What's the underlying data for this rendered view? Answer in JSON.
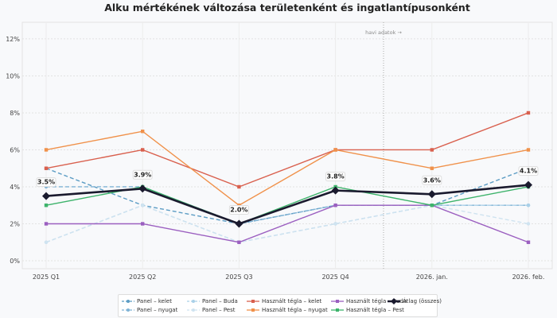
{
  "chart_data": {
    "type": "line",
    "title": "Alku mértékének változása területenként és ingatlantípusonként",
    "categories": [
      "2025 Q1",
      "2025 Q2",
      "2025 Q3",
      "2025 Q4",
      "2026. jan.",
      "2026. feb."
    ],
    "yticks": [
      "0%",
      "2%",
      "4%",
      "6%",
      "8%",
      "10%",
      "12%"
    ],
    "ylim": [
      -0.43,
      12.9
    ],
    "grid": true,
    "legend_position": "bottom",
    "annotation": "havi adatok →",
    "series": [
      {
        "name": "Panel – kelet",
        "values": [
          5,
          3,
          2,
          3,
          3,
          5
        ],
        "color": "#5b9cc4",
        "dashed": true,
        "marker": "circle"
      },
      {
        "name": "Panel – nyugat",
        "values": [
          4,
          4,
          2,
          3,
          3,
          3
        ],
        "color": "#7fb3d5",
        "dashed": true,
        "marker": "circle"
      },
      {
        "name": "Panel – Buda",
        "values": [
          1,
          3,
          1,
          2,
          3,
          3
        ],
        "color": "#a9d0e8",
        "dashed": true,
        "marker": "circle"
      },
      {
        "name": "Panel – Pest",
        "values": [
          1,
          3,
          1,
          2,
          3,
          2
        ],
        "color": "#cfe3f0",
        "dashed": true,
        "marker": "circle"
      },
      {
        "name": "Használt tégla – kelet",
        "values": [
          5,
          6,
          4,
          6,
          6,
          8
        ],
        "color": "#d9604e",
        "dashed": false,
        "marker": "square"
      },
      {
        "name": "Használt tégla – nyugat",
        "values": [
          6,
          7,
          3,
          6,
          5,
          6
        ],
        "color": "#f0914a",
        "dashed": false,
        "marker": "square"
      },
      {
        "name": "Használt tégla – Buda",
        "values": [
          2,
          2,
          1,
          3,
          3,
          1
        ],
        "color": "#9b5fc0",
        "dashed": false,
        "marker": "square"
      },
      {
        "name": "Használt tégla – Pest",
        "values": [
          3,
          4,
          2,
          4,
          3,
          4
        ],
        "color": "#3db36b",
        "dashed": false,
        "marker": "square"
      },
      {
        "name": "Átlag (összes)",
        "values": [
          3.5,
          3.9,
          2.0,
          3.8,
          3.6,
          4.1
        ],
        "color": "#1a1a2e",
        "dashed": false,
        "marker": "diamond",
        "labels": [
          "3.5%",
          "3.9%",
          "2.0%",
          "3.8%",
          "3.6%",
          "4.1%"
        ]
      }
    ]
  }
}
